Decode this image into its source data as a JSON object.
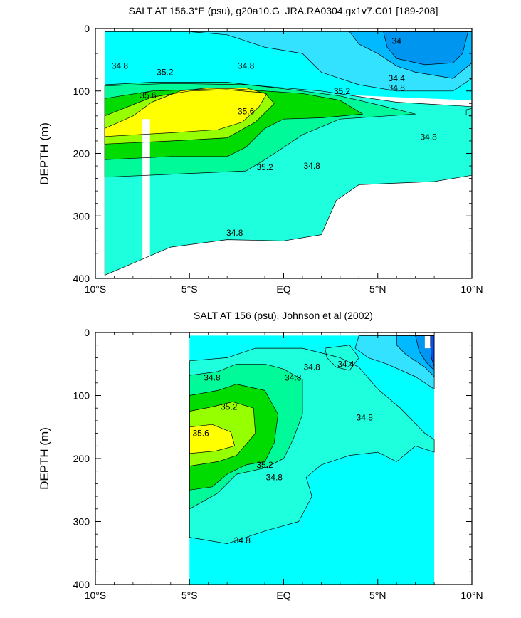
{
  "chart_data": [
    {
      "type": "contour",
      "title": "SALT AT 156.3°E (psu), g20a10.G_JRA.RA0304.gx1v7.C01 [189-208]",
      "ylabel": "DEPTH (m)",
      "xlim": [
        -10,
        10
      ],
      "ylim": [
        400,
        0
      ],
      "x_ticks": [
        {
          "v": -10,
          "label": "10°S"
        },
        {
          "v": -5,
          "label": "5°S"
        },
        {
          "v": 0,
          "label": "EQ"
        },
        {
          "v": 5,
          "label": "5°N"
        },
        {
          "v": 10,
          "label": "10°N"
        }
      ],
      "y_ticks": [
        {
          "v": 0,
          "label": "0"
        },
        {
          "v": 100,
          "label": "100"
        },
        {
          "v": 200,
          "label": "200"
        },
        {
          "v": 300,
          "label": "300"
        },
        {
          "v": 400,
          "label": "400"
        }
      ],
      "data_extent": {
        "x": [
          -9.5,
          10
        ],
        "y": [
          5,
          400
        ]
      },
      "levels": [
        33.8,
        34.0,
        34.2,
        34.4,
        34.6,
        34.8,
        35.0,
        35.2,
        35.4,
        35.6
      ],
      "colors": [
        "#0050ff",
        "#0096f0",
        "#00b9ff",
        "#33e2ff",
        "#00ffff",
        "#1effdd",
        "#00fa9a",
        "#00dc00",
        "#96ff00",
        "#ffff00"
      ],
      "missing": [
        {
          "x": [
            -7.5,
            -7.1
          ],
          "y": [
            145,
            400
          ]
        }
      ],
      "regions": [
        {
          "level": 34.6,
          "pts": [
            [
              -9.5,
              5
            ],
            [
              10,
              5
            ],
            [
              10,
              115
            ],
            [
              -9.5,
              90
            ]
          ]
        },
        {
          "level": 34.8,
          "pts": [
            [
              -9.5,
              92
            ],
            [
              -6,
              88
            ],
            [
              -2,
              90
            ],
            [
              2,
              100
            ],
            [
              6,
              118
            ],
            [
              10,
              125
            ],
            [
              10,
              235
            ],
            [
              8,
              245
            ],
            [
              4,
              250
            ],
            [
              2.8,
              275
            ],
            [
              2,
              330
            ],
            [
              0,
              340
            ],
            [
              -3,
              338
            ],
            [
              -6,
              350
            ],
            [
              -9.5,
              395
            ],
            [
              -9.5,
              92
            ]
          ]
        },
        {
          "level": 34.8,
          "pts": [
            [
              9.7,
              130
            ],
            [
              10,
              128
            ],
            [
              10,
              140
            ],
            [
              9.7,
              138
            ]
          ]
        },
        {
          "level": 35.0,
          "pts": [
            [
              -9.5,
              90
            ],
            [
              -7,
              86
            ],
            [
              -3,
              86
            ],
            [
              1,
              100
            ],
            [
              3,
              108
            ],
            [
              5,
              122
            ],
            [
              7,
              137
            ],
            [
              3,
              145
            ],
            [
              1,
              170
            ],
            [
              -1,
              210
            ],
            [
              -2,
              228
            ],
            [
              -5,
              232
            ],
            [
              -9.5,
              238
            ]
          ]
        },
        {
          "level": 35.2,
          "pts": [
            [
              -9.5,
              112
            ],
            [
              -7,
              100
            ],
            [
              -3,
              96
            ],
            [
              1,
              104
            ],
            [
              3,
              115
            ],
            [
              4.2,
              137
            ],
            [
              2,
              143
            ],
            [
              0,
              145
            ],
            [
              -1,
              160
            ],
            [
              -2,
              190
            ],
            [
              -3,
              205
            ],
            [
              -6,
              205
            ],
            [
              -9.5,
              210
            ]
          ]
        },
        {
          "level": 35.4,
          "pts": [
            [
              -9.5,
              140
            ],
            [
              -7,
              110
            ],
            [
              -5,
              100
            ],
            [
              -3,
              98
            ],
            [
              -1,
              103
            ],
            [
              -0.5,
              120
            ],
            [
              -1.5,
              150
            ],
            [
              -3,
              175
            ],
            [
              -6,
              180
            ],
            [
              -9.5,
              185
            ]
          ]
        },
        {
          "level": 35.6,
          "pts": [
            [
              -9.5,
              160
            ],
            [
              -8,
              140
            ],
            [
              -7,
              118
            ],
            [
              -5.5,
              100
            ],
            [
              -4,
              95
            ],
            [
              -2,
              95
            ],
            [
              -0.9,
              105
            ],
            [
              -1.3,
              125
            ],
            [
              -2.2,
              150
            ],
            [
              -3.5,
              162
            ],
            [
              -6,
              167
            ],
            [
              -9.5,
              173
            ]
          ]
        },
        {
          "level": 34.4,
          "pts": [
            [
              -9.5,
              5
            ],
            [
              10,
              5
            ],
            [
              10,
              80
            ],
            [
              9,
              100
            ],
            [
              6,
              100
            ],
            [
              4,
              90
            ],
            [
              2,
              70
            ],
            [
              1,
              40
            ],
            [
              -1,
              30
            ],
            [
              -3,
              10
            ],
            [
              -5,
              5
            ],
            [
              -9.5,
              5
            ]
          ]
        },
        {
          "level": 34.2,
          "pts": [
            [
              3.5,
              5
            ],
            [
              10,
              5
            ],
            [
              10,
              55
            ],
            [
              9,
              80
            ],
            [
              7,
              70
            ],
            [
              6,
              60
            ],
            [
              5,
              40
            ],
            [
              4,
              25
            ]
          ]
        },
        {
          "level": 34.0,
          "pts": [
            [
              5.3,
              5
            ],
            [
              9.8,
              5
            ],
            [
              9.5,
              40
            ],
            [
              9,
              55
            ],
            [
              7.5,
              58
            ],
            [
              6,
              48
            ],
            [
              5.5,
              30
            ]
          ]
        }
      ],
      "contour_labels": [
        {
          "value": "34",
          "x": 6,
          "y": 20
        },
        {
          "value": "34.4",
          "x": 6,
          "y": 80
        },
        {
          "value": "34.8",
          "x": 6,
          "y": 95
        },
        {
          "value": "34.8",
          "x": -8.7,
          "y": 60
        },
        {
          "value": "34.8",
          "x": -2,
          "y": 60
        },
        {
          "value": "35.2",
          "x": -6.3,
          "y": 70
        },
        {
          "value": "35.2",
          "x": 3.1,
          "y": 100
        },
        {
          "value": "35.6",
          "x": -7.2,
          "y": 107
        },
        {
          "value": "35.6",
          "x": -2,
          "y": 133
        },
        {
          "value": "35.2",
          "x": -1,
          "y": 222
        },
        {
          "value": "34.8",
          "x": 1.5,
          "y": 220
        },
        {
          "value": "34.8",
          "x": 7.7,
          "y": 174
        },
        {
          "value": "34.8",
          "x": -2.6,
          "y": 327
        }
      ]
    },
    {
      "type": "contour",
      "title": "SALT AT 156 (psu), Johnson et al (2002)",
      "ylabel": "DEPTH (m)",
      "xlim": [
        -10,
        10
      ],
      "ylim": [
        400,
        0
      ],
      "x_ticks": [
        {
          "v": -10,
          "label": "10°S"
        },
        {
          "v": -5,
          "label": "5°S"
        },
        {
          "v": 0,
          "label": "EQ"
        },
        {
          "v": 5,
          "label": "5°N"
        },
        {
          "v": 10,
          "label": "10°N"
        }
      ],
      "y_ticks": [
        {
          "v": 0,
          "label": "0"
        },
        {
          "v": 100,
          "label": "100"
        },
        {
          "v": 200,
          "label": "200"
        },
        {
          "v": 300,
          "label": "300"
        },
        {
          "v": 400,
          "label": "400"
        }
      ],
      "data_extent": {
        "x": [
          -5,
          8
        ],
        "y": [
          5,
          400
        ]
      },
      "levels": [
        33.8,
        34.0,
        34.2,
        34.4,
        34.6,
        34.8,
        35.0,
        35.2,
        35.4,
        35.6
      ],
      "colors": [
        "#0050ff",
        "#0096f0",
        "#00b9ff",
        "#33e2ff",
        "#00ffff",
        "#1effdd",
        "#00fa9a",
        "#00dc00",
        "#96ff00",
        "#ffff00"
      ],
      "missing": [
        {
          "x": [
            7.5,
            7.8
          ],
          "y": [
            5,
            25
          ]
        }
      ],
      "regions": [
        {
          "level": 34.6,
          "pts": [
            [
              -5,
              5
            ],
            [
              8,
              5
            ],
            [
              8,
              400
            ],
            [
              -5,
              400
            ]
          ]
        },
        {
          "level": 34.8,
          "pts": [
            [
              -5,
              45
            ],
            [
              -3,
              40
            ],
            [
              -1.5,
              25
            ],
            [
              1,
              25
            ],
            [
              3,
              40
            ],
            [
              4,
              55
            ],
            [
              5,
              90
            ],
            [
              6.2,
              120
            ],
            [
              7.5,
              160
            ],
            [
              8,
              170
            ],
            [
              8,
              190
            ],
            [
              7,
              180
            ],
            [
              6,
              205
            ],
            [
              5,
              190
            ],
            [
              3.5,
              195
            ],
            [
              2,
              210
            ],
            [
              1.2,
              230
            ],
            [
              1.5,
              260
            ],
            [
              0.8,
              300
            ],
            [
              -1,
              315
            ],
            [
              -3,
              335
            ],
            [
              -5,
              325
            ]
          ]
        },
        {
          "level": 34.8,
          "pts": [
            [
              2.2,
              25
            ],
            [
              3.5,
              20
            ],
            [
              4,
              40
            ],
            [
              3.5,
              60
            ],
            [
              2.8,
              55
            ],
            [
              2.3,
              40
            ]
          ]
        },
        {
          "level": 35.0,
          "pts": [
            [
              -5,
              68
            ],
            [
              -3.5,
              62
            ],
            [
              -2.5,
              50
            ],
            [
              -1,
              50
            ],
            [
              0,
              58
            ],
            [
              1,
              75
            ],
            [
              1,
              130
            ],
            [
              0.5,
              170
            ],
            [
              0,
              200
            ],
            [
              -1,
              215
            ],
            [
              -2.5,
              225
            ],
            [
              -3.5,
              255
            ],
            [
              -5,
              280
            ]
          ]
        },
        {
          "level": 35.2,
          "pts": [
            [
              -5,
              100
            ],
            [
              -3.5,
              92
            ],
            [
              -2.5,
              82
            ],
            [
              -1,
              92
            ],
            [
              -0.3,
              130
            ],
            [
              -0.5,
              175
            ],
            [
              -1,
              205
            ],
            [
              -2,
              210
            ],
            [
              -3,
              225
            ],
            [
              -3.8,
              245
            ],
            [
              -5,
              250
            ]
          ]
        },
        {
          "level": 35.4,
          "pts": [
            [
              -5,
              125
            ],
            [
              -3.8,
              118
            ],
            [
              -2.7,
              110
            ],
            [
              -1.6,
              120
            ],
            [
              -1.5,
              160
            ],
            [
              -2.5,
              195
            ],
            [
              -3.5,
              205
            ],
            [
              -5,
              212
            ]
          ]
        },
        {
          "level": 35.6,
          "pts": [
            [
              -5,
              150
            ],
            [
              -3.8,
              146
            ],
            [
              -2.8,
              158
            ],
            [
              -2.6,
              180
            ],
            [
              -3.6,
              188
            ],
            [
              -5,
              192
            ]
          ]
        },
        {
          "level": 34.4,
          "pts": [
            [
              4,
              5
            ],
            [
              8,
              5
            ],
            [
              8,
              90
            ],
            [
              7,
              70
            ],
            [
              5.5,
              50
            ],
            [
              4.5,
              40
            ],
            [
              3.8,
              25
            ]
          ]
        },
        {
          "level": 34.2,
          "pts": [
            [
              6,
              5
            ],
            [
              8,
              5
            ],
            [
              8,
              70
            ],
            [
              7.5,
              55
            ],
            [
              6.5,
              35
            ],
            [
              6,
              20
            ]
          ]
        },
        {
          "level": 34.0,
          "pts": [
            [
              7,
              5
            ],
            [
              8,
              5
            ],
            [
              8,
              60
            ],
            [
              7.6,
              48
            ],
            [
              7.2,
              30
            ]
          ]
        },
        {
          "level": 33.8,
          "pts": [
            [
              7.8,
              5
            ],
            [
              8,
              5
            ],
            [
              8,
              55
            ],
            [
              7.85,
              40
            ],
            [
              7.8,
              20
            ]
          ]
        }
      ],
      "contour_labels": [
        {
          "value": "34.4",
          "x": 3.3,
          "y": 50
        },
        {
          "value": "34.8",
          "x": -3.8,
          "y": 72
        },
        {
          "value": "34.8",
          "x": 0.5,
          "y": 72
        },
        {
          "value": "34.8",
          "x": 1.5,
          "y": 55
        },
        {
          "value": "35.2",
          "x": -2.9,
          "y": 118
        },
        {
          "value": "35.6",
          "x": -4.4,
          "y": 160
        },
        {
          "value": "34.8",
          "x": 4.3,
          "y": 135
        },
        {
          "value": "35.2",
          "x": -1,
          "y": 210
        },
        {
          "value": "34.8",
          "x": -0.5,
          "y": 230
        },
        {
          "value": "34.8",
          "x": -2.2,
          "y": 330
        }
      ]
    }
  ]
}
